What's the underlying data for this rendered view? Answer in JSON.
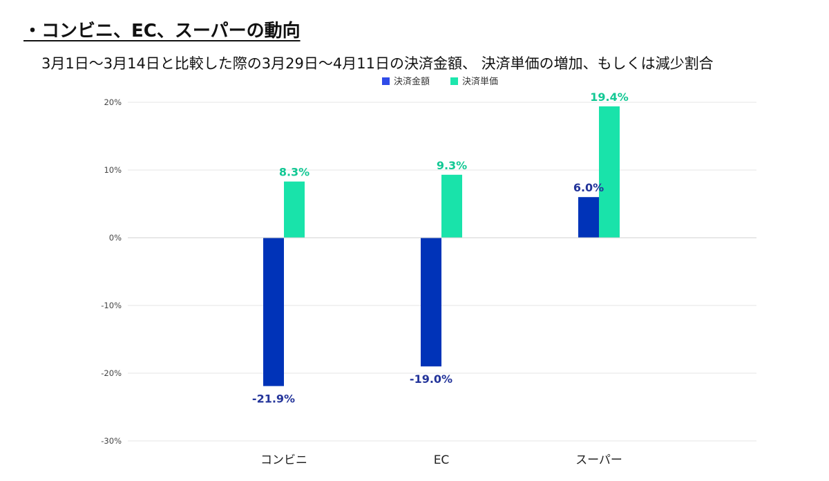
{
  "page": {
    "heading": "・コンビニ、EC、スーパーの動向"
  },
  "colors": {
    "series1": "#0033b8",
    "series1_label": "#23349a",
    "series2": "#19e3aa",
    "series2_label": "#12c894",
    "legend_series1": "#2f4be8",
    "legend_series2": "#1de6ad",
    "grid": "#e4e4e4",
    "zero_line": "#cfcfcf"
  },
  "chart_data": {
    "type": "bar",
    "title": "3月1日～3月14日と比較した際の3月29日～4月11日の決済金額、 決済単価の増加、もしくは減少割合",
    "xlabel": "",
    "ylabel": "",
    "categories": [
      "コンビニ",
      "EC",
      "スーパー"
    ],
    "series": [
      {
        "name": "決済金額",
        "values": [
          -21.9,
          -19.0,
          6.0
        ],
        "labels": [
          "-21.9%",
          "-19.0%",
          "6.0%"
        ]
      },
      {
        "name": "決済単価",
        "values": [
          8.3,
          9.3,
          19.4
        ],
        "labels": [
          "8.3%",
          "9.3%",
          "19.4%"
        ]
      }
    ],
    "ylim": [
      -30,
      20
    ],
    "yticks": [
      20,
      10,
      0,
      -10,
      -20,
      -30
    ],
    "ytick_labels": [
      "20%",
      "10%",
      "0%",
      "-10%",
      "-20%",
      "-30%"
    ],
    "grid": true,
    "legend_position": "top-center"
  }
}
